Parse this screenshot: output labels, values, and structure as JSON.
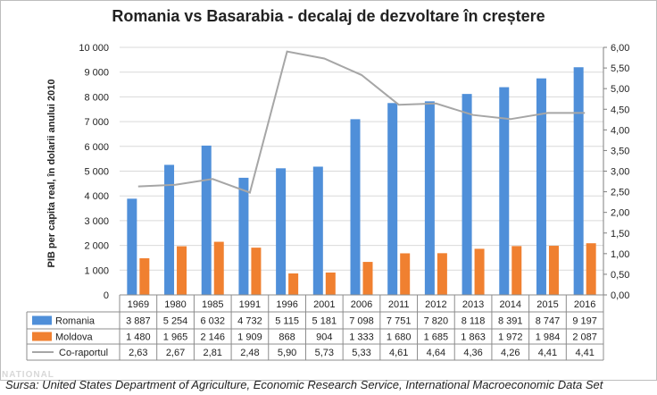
{
  "title": "Romania vs Basarabia  - decalaj de dezvoltare în creștere",
  "source_note": "Sursa: United States Department of Agriculture, Economic Research Service, International Macroeconomic Data Set",
  "watermark": "NATIONAL",
  "colors": {
    "romania": "#4f8fd9",
    "moldova": "#f08030",
    "ratio": "#a6a6a6",
    "grid": "#d9d9d9",
    "axis": "#7f7f7f"
  },
  "chart_data": {
    "type": "bar",
    "title": "Romania vs Basarabia  - decalaj de dezvoltare în creștere",
    "ylabel": "PIB per capita real, în dolarii anului 2010",
    "xlabel": "",
    "categories": [
      "1969",
      "1980",
      "1985",
      "1991",
      "1996",
      "2001",
      "2006",
      "2011",
      "2012",
      "2013",
      "2014",
      "2015",
      "2016"
    ],
    "series": [
      {
        "name": "Romania",
        "kind": "bar",
        "axis": "left",
        "values": [
          3887,
          5254,
          6032,
          4732,
          5115,
          5181,
          7098,
          7751,
          7820,
          8118,
          8391,
          8747,
          9197
        ],
        "labels": [
          "3 887",
          "5 254",
          "6 032",
          "4 732",
          "5 115",
          "5 181",
          "7 098",
          "7 751",
          "7 820",
          "8 118",
          "8 391",
          "8 747",
          "9 197"
        ]
      },
      {
        "name": "Moldova",
        "kind": "bar",
        "axis": "left",
        "values": [
          1480,
          1965,
          2146,
          1909,
          868,
          904,
          1333,
          1680,
          1685,
          1863,
          1972,
          1984,
          2087
        ],
        "labels": [
          "1 480",
          "1 965",
          "2 146",
          "1 909",
          "868",
          "904",
          "1 333",
          "1 680",
          "1 685",
          "1 863",
          "1 972",
          "1 984",
          "2 087"
        ]
      },
      {
        "name": "Co-raportul",
        "kind": "line",
        "axis": "right",
        "values": [
          2.63,
          2.67,
          2.81,
          2.48,
          5.9,
          5.73,
          5.33,
          4.61,
          4.64,
          4.36,
          4.26,
          4.41,
          4.41
        ],
        "labels": [
          "2,63",
          "2,67",
          "2,81",
          "2,48",
          "5,90",
          "5,73",
          "5,33",
          "4,61",
          "4,64",
          "4,36",
          "4,26",
          "4,41",
          "4,41"
        ]
      }
    ],
    "ylim_left": [
      0,
      10000
    ],
    "yticks_left": [
      "0",
      "1 000",
      "2 000",
      "3 000",
      "4 000",
      "5 000",
      "6 000",
      "7 000",
      "8 000",
      "9 000",
      "10 000"
    ],
    "ylim_right": [
      0,
      6
    ],
    "yticks_right": [
      "0,00",
      "0,50",
      "1,00",
      "1,50",
      "2,00",
      "2,50",
      "3,00",
      "3,50",
      "4,00",
      "4,50",
      "5,00",
      "5,50",
      "6,00"
    ],
    "grid": true,
    "legend": "data-table"
  }
}
